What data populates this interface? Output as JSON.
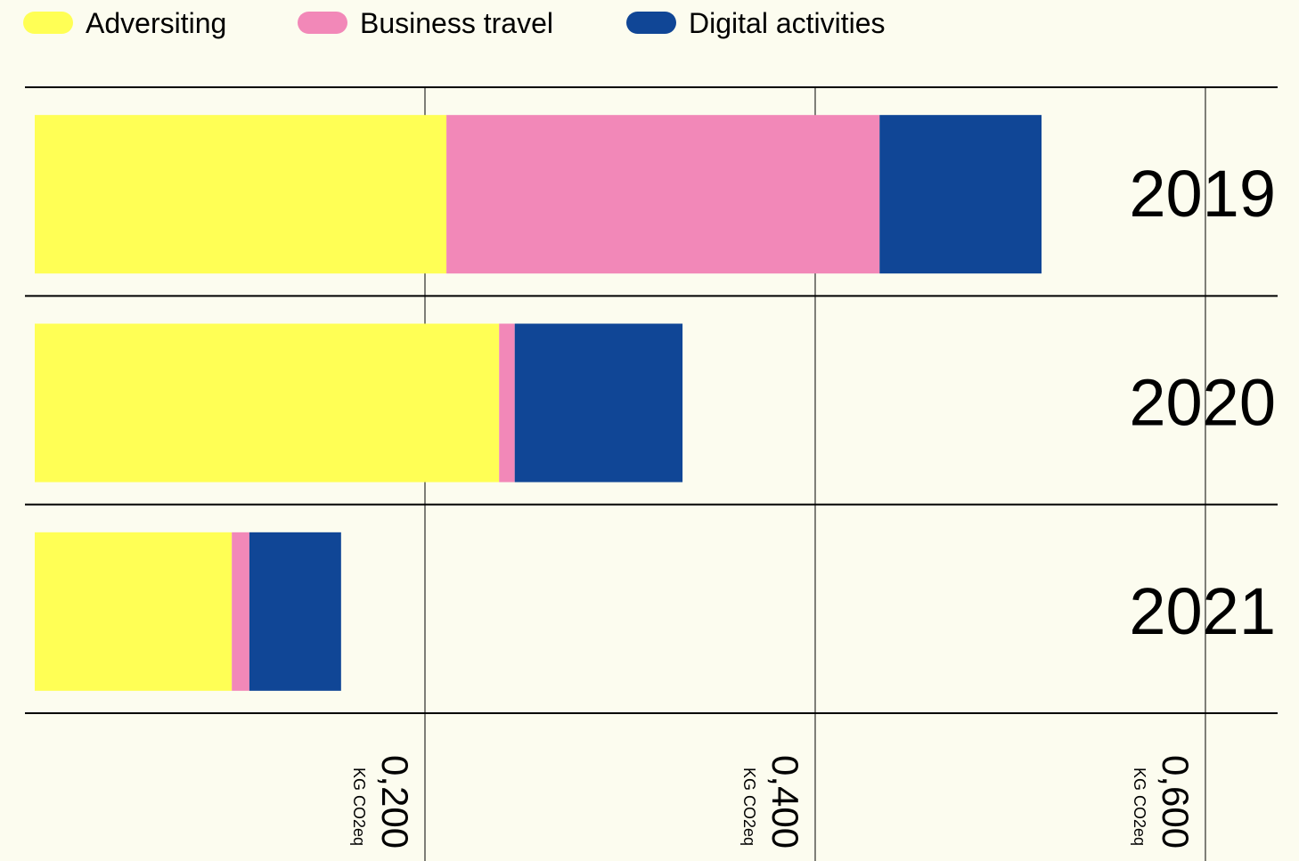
{
  "chart_data": {
    "type": "stacked-barh",
    "categories": [
      "2019",
      "2020",
      "2021"
    ],
    "series": [
      {
        "name": "Adversiting",
        "color": "#ffff55",
        "values": [
          0.211,
          0.238,
          0.101
        ]
      },
      {
        "name": "Business travel",
        "color": "#f288b8",
        "values": [
          0.222,
          0.008,
          0.009
        ]
      },
      {
        "name": "Digital activities",
        "color": "#104696",
        "values": [
          0.083,
          0.086,
          0.047
        ]
      }
    ],
    "xlim": [
      0,
      0.637
    ],
    "xticks": [
      {
        "value": 0.2,
        "label": "0,200"
      },
      {
        "value": 0.4,
        "label": "0,400"
      },
      {
        "value": 0.6,
        "label": "0,600"
      }
    ],
    "xlabel": "KG CO2eq",
    "grid": true,
    "legend": "top-left"
  }
}
